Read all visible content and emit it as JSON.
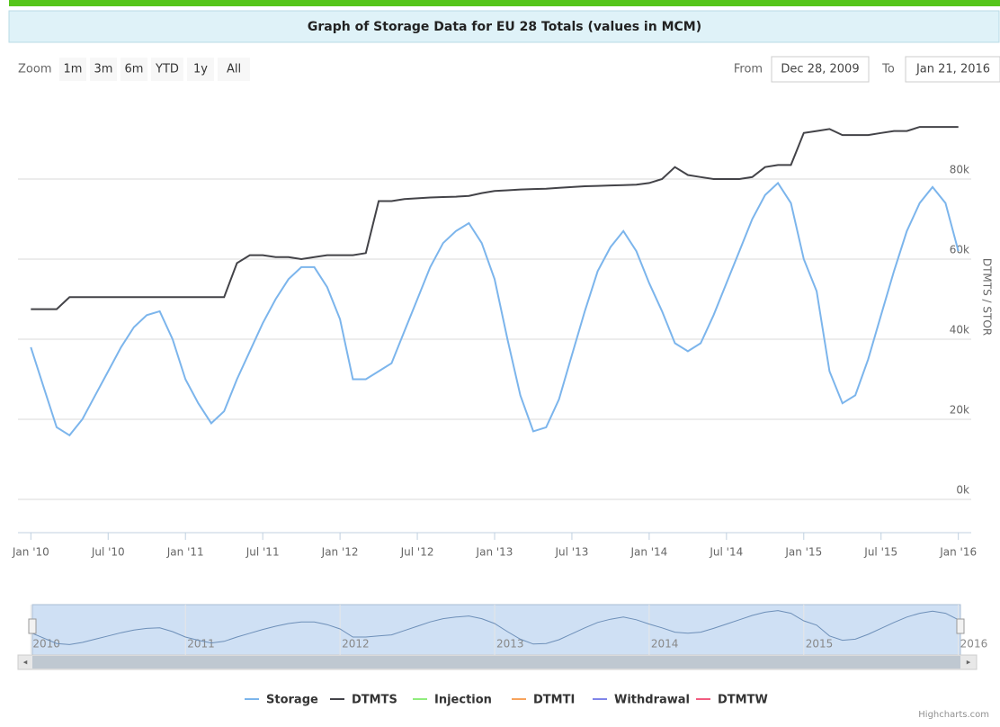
{
  "chart_data": {
    "type": "line",
    "title": "Graph of Storage Data for EU 28 Totals (values in MCM)",
    "y_label": "DTMTS / STOR",
    "x": [
      "2010-01",
      "2010-02",
      "2010-03",
      "2010-04",
      "2010-05",
      "2010-06",
      "2010-07",
      "2010-08",
      "2010-09",
      "2010-10",
      "2010-11",
      "2010-12",
      "2011-01",
      "2011-02",
      "2011-03",
      "2011-04",
      "2011-05",
      "2011-06",
      "2011-07",
      "2011-08",
      "2011-09",
      "2011-10",
      "2011-11",
      "2011-12",
      "2012-01",
      "2012-02",
      "2012-03",
      "2012-04",
      "2012-05",
      "2012-06",
      "2012-07",
      "2012-08",
      "2012-09",
      "2012-10",
      "2012-11",
      "2012-12",
      "2013-01",
      "2013-02",
      "2013-03",
      "2013-04",
      "2013-05",
      "2013-06",
      "2013-07",
      "2013-08",
      "2013-09",
      "2013-10",
      "2013-11",
      "2013-12",
      "2014-01",
      "2014-02",
      "2014-03",
      "2014-04",
      "2014-05",
      "2014-06",
      "2014-07",
      "2014-08",
      "2014-09",
      "2014-10",
      "2014-11",
      "2014-12",
      "2015-01",
      "2015-02",
      "2015-03",
      "2015-04",
      "2015-05",
      "2015-06",
      "2015-07",
      "2015-08",
      "2015-09",
      "2015-10",
      "2015-11",
      "2015-12",
      "2016-01"
    ],
    "series": [
      {
        "name": "Storage",
        "color": "#7cb5ec",
        "values": [
          38000,
          28000,
          18000,
          16000,
          20000,
          26000,
          32000,
          38000,
          43000,
          46000,
          47000,
          40000,
          30000,
          24000,
          19000,
          22000,
          30000,
          37000,
          44000,
          50000,
          55000,
          58000,
          58000,
          53000,
          45000,
          30000,
          30000,
          32000,
          34000,
          42000,
          50000,
          58000,
          64000,
          67000,
          69000,
          64000,
          55000,
          40000,
          26000,
          17000,
          18000,
          25000,
          36000,
          47000,
          57000,
          63000,
          67000,
          62000,
          54000,
          47000,
          39000,
          37000,
          39000,
          46000,
          54000,
          62000,
          70000,
          76000,
          79000,
          74000,
          60000,
          52000,
          32000,
          24000,
          26000,
          35000,
          46000,
          57000,
          67000,
          74000,
          78000,
          74000,
          62000
        ]
      },
      {
        "name": "DTMTS",
        "color": "#434348",
        "values": [
          47500,
          47500,
          47500,
          50500,
          50500,
          50500,
          50500,
          50500,
          50500,
          50500,
          50500,
          50500,
          50500,
          50500,
          50500,
          50500,
          59000,
          61000,
          61000,
          60500,
          60500,
          60000,
          60500,
          61000,
          61000,
          61000,
          61500,
          74500,
          74500,
          75000,
          75200,
          75400,
          75500,
          75600,
          75800,
          76500,
          77000,
          77200,
          77400,
          77500,
          77600,
          77800,
          78000,
          78200,
          78300,
          78400,
          78500,
          78600,
          79000,
          80000,
          83000,
          81000,
          80500,
          80000,
          80000,
          80000,
          80500,
          83000,
          83500,
          83500,
          91500,
          92000,
          92500,
          91000,
          91000,
          91000,
          91500,
          92000,
          92000,
          93000,
          93000,
          93000,
          93000
        ]
      },
      {
        "name": "Injection",
        "color": "#90ed7d"
      },
      {
        "name": "DTMTI",
        "color": "#f7a35c"
      },
      {
        "name": "Withdrawal",
        "color": "#8085e9"
      },
      {
        "name": "DTMTW",
        "color": "#f15c80"
      }
    ],
    "xlim": [
      "2009-12",
      "2016-02"
    ],
    "xticks": [
      {
        "value": "2010-01",
        "label": "Jan '10"
      },
      {
        "value": "2010-07",
        "label": "Jul '10"
      },
      {
        "value": "2011-01",
        "label": "Jan '11"
      },
      {
        "value": "2011-07",
        "label": "Jul '11"
      },
      {
        "value": "2012-01",
        "label": "Jan '12"
      },
      {
        "value": "2012-07",
        "label": "Jul '12"
      },
      {
        "value": "2013-01",
        "label": "Jan '13"
      },
      {
        "value": "2013-07",
        "label": "Jul '13"
      },
      {
        "value": "2014-01",
        "label": "Jan '14"
      },
      {
        "value": "2014-07",
        "label": "Jul '14"
      },
      {
        "value": "2015-01",
        "label": "Jan '15"
      },
      {
        "value": "2015-07",
        "label": "Jul '15"
      },
      {
        "value": "2016-01",
        "label": "Jan '16"
      }
    ],
    "ylim": [
      0,
      100000
    ],
    "yticks": [
      {
        "value": 0,
        "label": "0k"
      },
      {
        "value": 20000,
        "label": "20k"
      },
      {
        "value": 40000,
        "label": "40k"
      },
      {
        "value": 60000,
        "label": "60k"
      },
      {
        "value": 80000,
        "label": "80k"
      }
    ],
    "grid": true,
    "navigator_ticks": [
      {
        "value": "2010-01",
        "label": "2010"
      },
      {
        "value": "2011-01",
        "label": "2011"
      },
      {
        "value": "2012-01",
        "label": "2012"
      },
      {
        "value": "2013-01",
        "label": "2013"
      },
      {
        "value": "2014-01",
        "label": "2014"
      },
      {
        "value": "2015-01",
        "label": "2015"
      },
      {
        "value": "2016-01",
        "label": "2016"
      }
    ]
  },
  "range_selector": {
    "label": "Zoom",
    "buttons": [
      "1m",
      "3m",
      "6m",
      "YTD",
      "1y",
      "All"
    ],
    "from_label": "From",
    "from": "Dec 28, 2009",
    "to_label": "To",
    "to": "Jan 21, 2016"
  },
  "credit": "Highcharts.com"
}
